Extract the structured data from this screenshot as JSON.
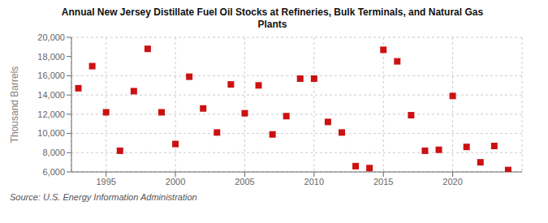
{
  "chart_data": {
    "type": "scatter",
    "title": "Annual New Jersey Distillate Fuel Oil Stocks at Refineries, Bulk Terminals, and Natural Gas\nPlants",
    "ylabel": "Thousand Barrels",
    "annotation": "Source: U.S. Energy Information Administration",
    "x": [
      1993,
      1994,
      1995,
      1996,
      1997,
      1998,
      1999,
      2000,
      2001,
      2002,
      2003,
      2004,
      2005,
      2006,
      2007,
      2008,
      2009,
      2010,
      2011,
      2012,
      2013,
      2014,
      2015,
      2016,
      2017,
      2018,
      2019,
      2020,
      2021,
      2022,
      2023,
      2024
    ],
    "values": [
      14700,
      17000,
      12200,
      8200,
      14400,
      18800,
      12200,
      8900,
      15900,
      12600,
      10100,
      15100,
      12100,
      15000,
      9900,
      11800,
      15700,
      15700,
      11200,
      10100,
      6600,
      6400,
      18700,
      17500,
      11900,
      8200,
      8300,
      13900,
      8600,
      7000,
      8700,
      6200
    ],
    "color": "#cc1111",
    "marker": "square",
    "xlim": [
      1992.5,
      2025
    ],
    "xticks": [
      1995,
      2000,
      2005,
      2010,
      2015,
      2020
    ],
    "ylim": [
      6000,
      20000
    ],
    "yticks": [
      {
        "value": 6000,
        "label": "6,000"
      },
      {
        "value": 8000,
        "label": "8,000"
      },
      {
        "value": 10000,
        "label": "10,000"
      },
      {
        "value": 12000,
        "label": "12,000"
      },
      {
        "value": 14000,
        "label": "14,000"
      },
      {
        "value": 16000,
        "label": "16,000"
      },
      {
        "value": 18000,
        "label": "18,000"
      },
      {
        "value": 20000,
        "label": "20,000"
      }
    ],
    "grid": true
  }
}
